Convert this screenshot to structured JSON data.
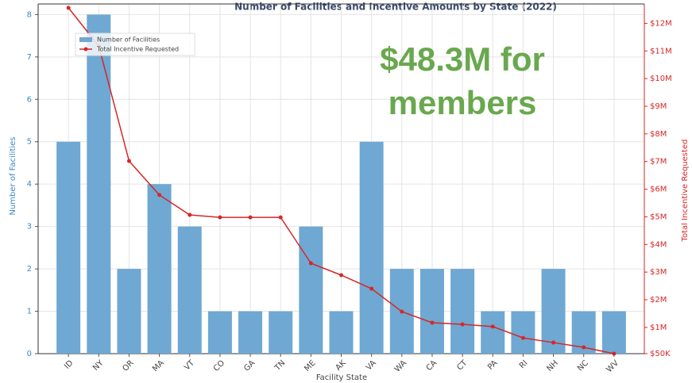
{
  "chart_data": {
    "type": "bar",
    "title": "Number of Facilities and Incentive Amounts by State (2022)",
    "x_label": "Facility State",
    "y_label": "Number of Facilities",
    "y2_label": "Total Incentive Requested",
    "annotation": "$48.3M for members",
    "categories": [
      "ID",
      "NY",
      "OR",
      "MA",
      "VT",
      "CO",
      "GA",
      "TN",
      "ME",
      "AK",
      "VA",
      "WA",
      "CA",
      "CT",
      "PA",
      "RI",
      "NH",
      "NC",
      "WV"
    ],
    "series": [
      {
        "name": "Number of Facilities",
        "type": "bar",
        "color": "#6fa8d2",
        "values": [
          5,
          8,
          2,
          4,
          3,
          1,
          1,
          1,
          3,
          1,
          5,
          2,
          2,
          2,
          1,
          1,
          2,
          1,
          1
        ]
      },
      {
        "name": "Total Incentive Requested",
        "type": "line",
        "axis": "y2",
        "color": "#d62728",
        "values": [
          12560000,
          11180000,
          7020000,
          5790000,
          5070000,
          4980000,
          4980000,
          4980000,
          3320000,
          2890000,
          2400000,
          1570000,
          1170000,
          1110000,
          1030000,
          620000,
          450000,
          280000,
          50000
        ]
      }
    ],
    "ylim": [
      0,
      8.25
    ],
    "yticks": [
      0,
      1,
      2,
      3,
      4,
      5,
      6,
      7,
      8
    ],
    "y2lim": [
      50000,
      12700000
    ],
    "y2ticks": [
      {
        "value": 50000,
        "label": "$50K"
      },
      {
        "value": 1000000,
        "label": "$1M"
      },
      {
        "value": 2000000,
        "label": "$2M"
      },
      {
        "value": 3000000,
        "label": "$3M"
      },
      {
        "value": 4000000,
        "label": "$4M"
      },
      {
        "value": 5000000,
        "label": "$5M"
      },
      {
        "value": 6000000,
        "label": "$6M"
      },
      {
        "value": 7000000,
        "label": "$7M"
      },
      {
        "value": 8000000,
        "label": "$8M"
      },
      {
        "value": 9000000,
        "label": "$9M"
      },
      {
        "value": 10000000,
        "label": "$10M"
      },
      {
        "value": 11000000,
        "label": "$11M"
      },
      {
        "value": 12000000,
        "label": "$12M"
      }
    ],
    "grid": true,
    "legend": "upper left"
  }
}
